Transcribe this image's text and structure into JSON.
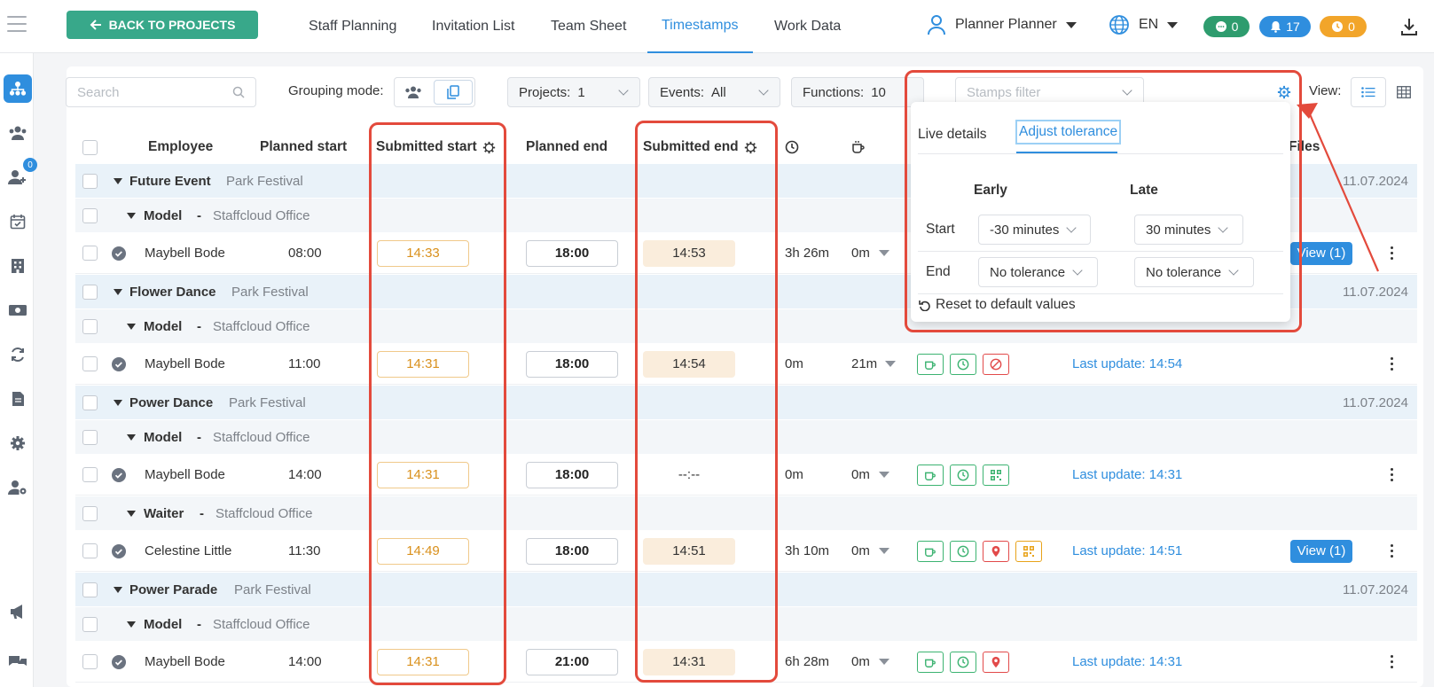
{
  "header": {
    "back_label": "BACK TO PROJECTS",
    "nav": [
      "Staff Planning",
      "Invitation List",
      "Team Sheet",
      "Timestamps",
      "Work Data"
    ],
    "active_nav": "Timestamps",
    "user_name": "Planner Planner",
    "language": "EN",
    "badges": {
      "messages": "0",
      "notifications": "17",
      "alerts": "0"
    }
  },
  "sidebar": {
    "contacts_badge": "0"
  },
  "toolbar": {
    "search_placeholder": "Search",
    "grouping_label": "Grouping mode:",
    "projects_label": "Projects:",
    "projects_value": "1",
    "events_label": "Events:",
    "events_value": "All",
    "functions_label": "Functions:",
    "functions_value": "10",
    "stamps_placeholder": "Stamps filter",
    "view_label": "View:"
  },
  "table_headers": {
    "employee": "Employee",
    "planned_start": "Planned start",
    "submitted_start": "Submitted start",
    "planned_end": "Planned end",
    "submitted_end": "Submitted end",
    "files": "Files"
  },
  "rows": {
    "g1": {
      "event": "Future Event",
      "place": "Park Festival",
      "date": "11.07.2024"
    },
    "s1": {
      "func": "Model",
      "sep": "-",
      "office": "Staffcloud Office"
    },
    "e1": {
      "name": "Maybell Bode",
      "plan_start": "08:00",
      "sub_start": "14:33",
      "plan_end": "18:00",
      "sub_end": "14:53",
      "dur": "3h 26m",
      "brk": "0m",
      "files": "View (1)"
    },
    "g2": {
      "event": "Flower Dance",
      "place": "Park Festival",
      "date": "11.07.2024"
    },
    "s2": {
      "func": "Model",
      "sep": "-",
      "office": "Staffcloud Office"
    },
    "e2": {
      "name": "Maybell Bode",
      "plan_start": "11:00",
      "sub_start": "14:31",
      "plan_end": "18:00",
      "sub_end": "14:54",
      "dur": "0m",
      "brk": "21m",
      "update": "Last update: 14:54"
    },
    "g3": {
      "event": "Power Dance",
      "place": "Park Festival",
      "date": "11.07.2024"
    },
    "s3": {
      "func": "Model",
      "sep": "-",
      "office": "Staffcloud Office"
    },
    "e3": {
      "name": "Maybell Bode",
      "plan_start": "14:00",
      "sub_start": "14:31",
      "plan_end": "18:00",
      "sub_end": "--:--",
      "dur": "0m",
      "brk": "0m",
      "update": "Last update: 14:31"
    },
    "s4": {
      "func": "Waiter",
      "sep": "-",
      "office": "Staffcloud Office"
    },
    "e4": {
      "name": "Celestine Little",
      "plan_start": "11:30",
      "sub_start": "14:49",
      "plan_end": "18:00",
      "sub_end": "14:51",
      "dur": "3h 10m",
      "brk": "0m",
      "update": "Last update: 14:51",
      "files": "View (1)"
    },
    "g5": {
      "event": "Power Parade",
      "place": "Park Festival",
      "date": "11.07.2024"
    },
    "s5": {
      "func": "Model",
      "sep": "-",
      "office": "Staffcloud Office"
    },
    "e5": {
      "name": "Maybell Bode",
      "plan_start": "14:00",
      "sub_start": "14:31",
      "plan_end": "21:00",
      "sub_end": "14:31",
      "dur": "6h 28m",
      "brk": "0m",
      "update": "Last update: 14:31"
    }
  },
  "popup": {
    "tab_live": "Live details",
    "tab_adjust": "Adjust tolerance",
    "col_early": "Early",
    "col_late": "Late",
    "row_start": "Start",
    "row_end": "End",
    "start_early": "-30 minutes",
    "start_late": "30 minutes",
    "end_early": "No tolerance",
    "end_late": "No tolerance",
    "reset": "Reset to default values"
  },
  "colors": {
    "accent": "#2f8ede",
    "back_button": "#38a88a",
    "highlight": "#e34a3c"
  }
}
